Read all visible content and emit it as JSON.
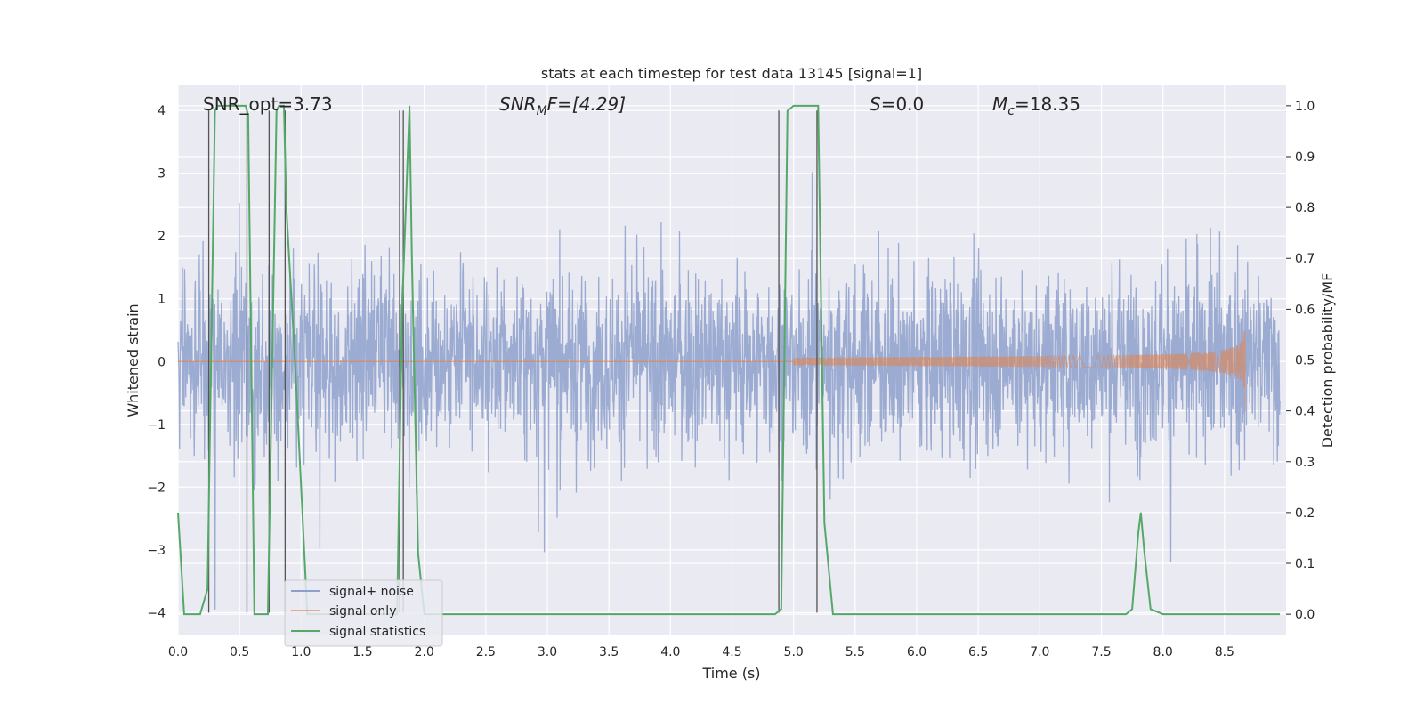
{
  "chart_data": {
    "type": "line",
    "title": "stats at each timestep for test data 13145 [signal=1]",
    "xlabel": "Time (s)",
    "ylabel": "Whitened strain",
    "y2label": "Detection probability/MF",
    "xlim": [
      0.0,
      9.0
    ],
    "ylim": [
      -4.35,
      4.4
    ],
    "y2lim": [
      -0.04,
      1.04
    ],
    "xticks": [
      0.0,
      0.5,
      1.0,
      1.5,
      2.0,
      2.5,
      3.0,
      3.5,
      4.0,
      4.5,
      5.0,
      5.5,
      6.0,
      6.5,
      7.0,
      7.5,
      8.0,
      8.5
    ],
    "yticks": [
      4,
      3,
      2,
      1,
      0,
      -1,
      -2,
      -3,
      -4
    ],
    "y2ticks": [
      1.0,
      0.9,
      0.8,
      0.7,
      0.6,
      0.5,
      0.4,
      0.3,
      0.2,
      0.1,
      0.0
    ],
    "grid": true,
    "legend": {
      "placement": "lower-left",
      "entries": [
        {
          "name": "signal+ noise",
          "color": "#8da0cb"
        },
        {
          "name": "signal only",
          "color": "#dd8452"
        },
        {
          "name": "signal statistics",
          "color": "#55a868"
        }
      ]
    },
    "annotations": {
      "snr_opt": "SNR_opt=3.73",
      "snr_mf_sym": "SNR",
      "snr_mf_sub": "M",
      "snr_mf_rest": "F=[4.29]",
      "s_sym": "S",
      "s_rest": "=0.0",
      "mc_sym": "M",
      "mc_sub": "c",
      "mc_rest": "=18.35"
    },
    "series": [
      {
        "name": "signal+ noise",
        "color": "#8da0cb",
        "description_values": {
          "envelope_typical": [
            -2.0,
            2.0
          ],
          "peaks_max": 4.0,
          "peaks_min": -3.9
        }
      },
      {
        "name": "signal only",
        "color": "#dd8452",
        "chirp_start": 5.0,
        "chirp_end": 8.67,
        "peak_amplitude": 0.8
      },
      {
        "name": "signal statistics",
        "color": "#55a868",
        "x": [
          0.0,
          0.05,
          0.18,
          0.24,
          0.3,
          0.32,
          0.55,
          0.57,
          0.62,
          0.73,
          0.8,
          0.82,
          0.86,
          0.88,
          0.95,
          1.05,
          1.78,
          1.82,
          1.88,
          1.9,
          1.95,
          2.0,
          4.85,
          4.9,
          4.95,
          5.0,
          5.2,
          5.25,
          5.32,
          7.7,
          7.75,
          7.8,
          7.82,
          7.85,
          7.9,
          8.0,
          8.95
        ],
        "values": [
          0.2,
          0.0,
          0.0,
          0.05,
          0.99,
          1.0,
          1.0,
          0.98,
          0.0,
          0.0,
          0.99,
          1.0,
          1.0,
          0.8,
          0.5,
          0.0,
          0.0,
          0.6,
          1.0,
          0.7,
          0.12,
          0.0,
          0.0,
          0.01,
          0.99,
          1.0,
          1.0,
          0.18,
          0.0,
          0.0,
          0.01,
          0.16,
          0.2,
          0.12,
          0.01,
          0.0,
          0.0
        ]
      }
    ],
    "vertical_markers": [
      0.25,
      0.56,
      0.74,
      0.87,
      1.8,
      1.83,
      4.88,
      5.19
    ]
  }
}
